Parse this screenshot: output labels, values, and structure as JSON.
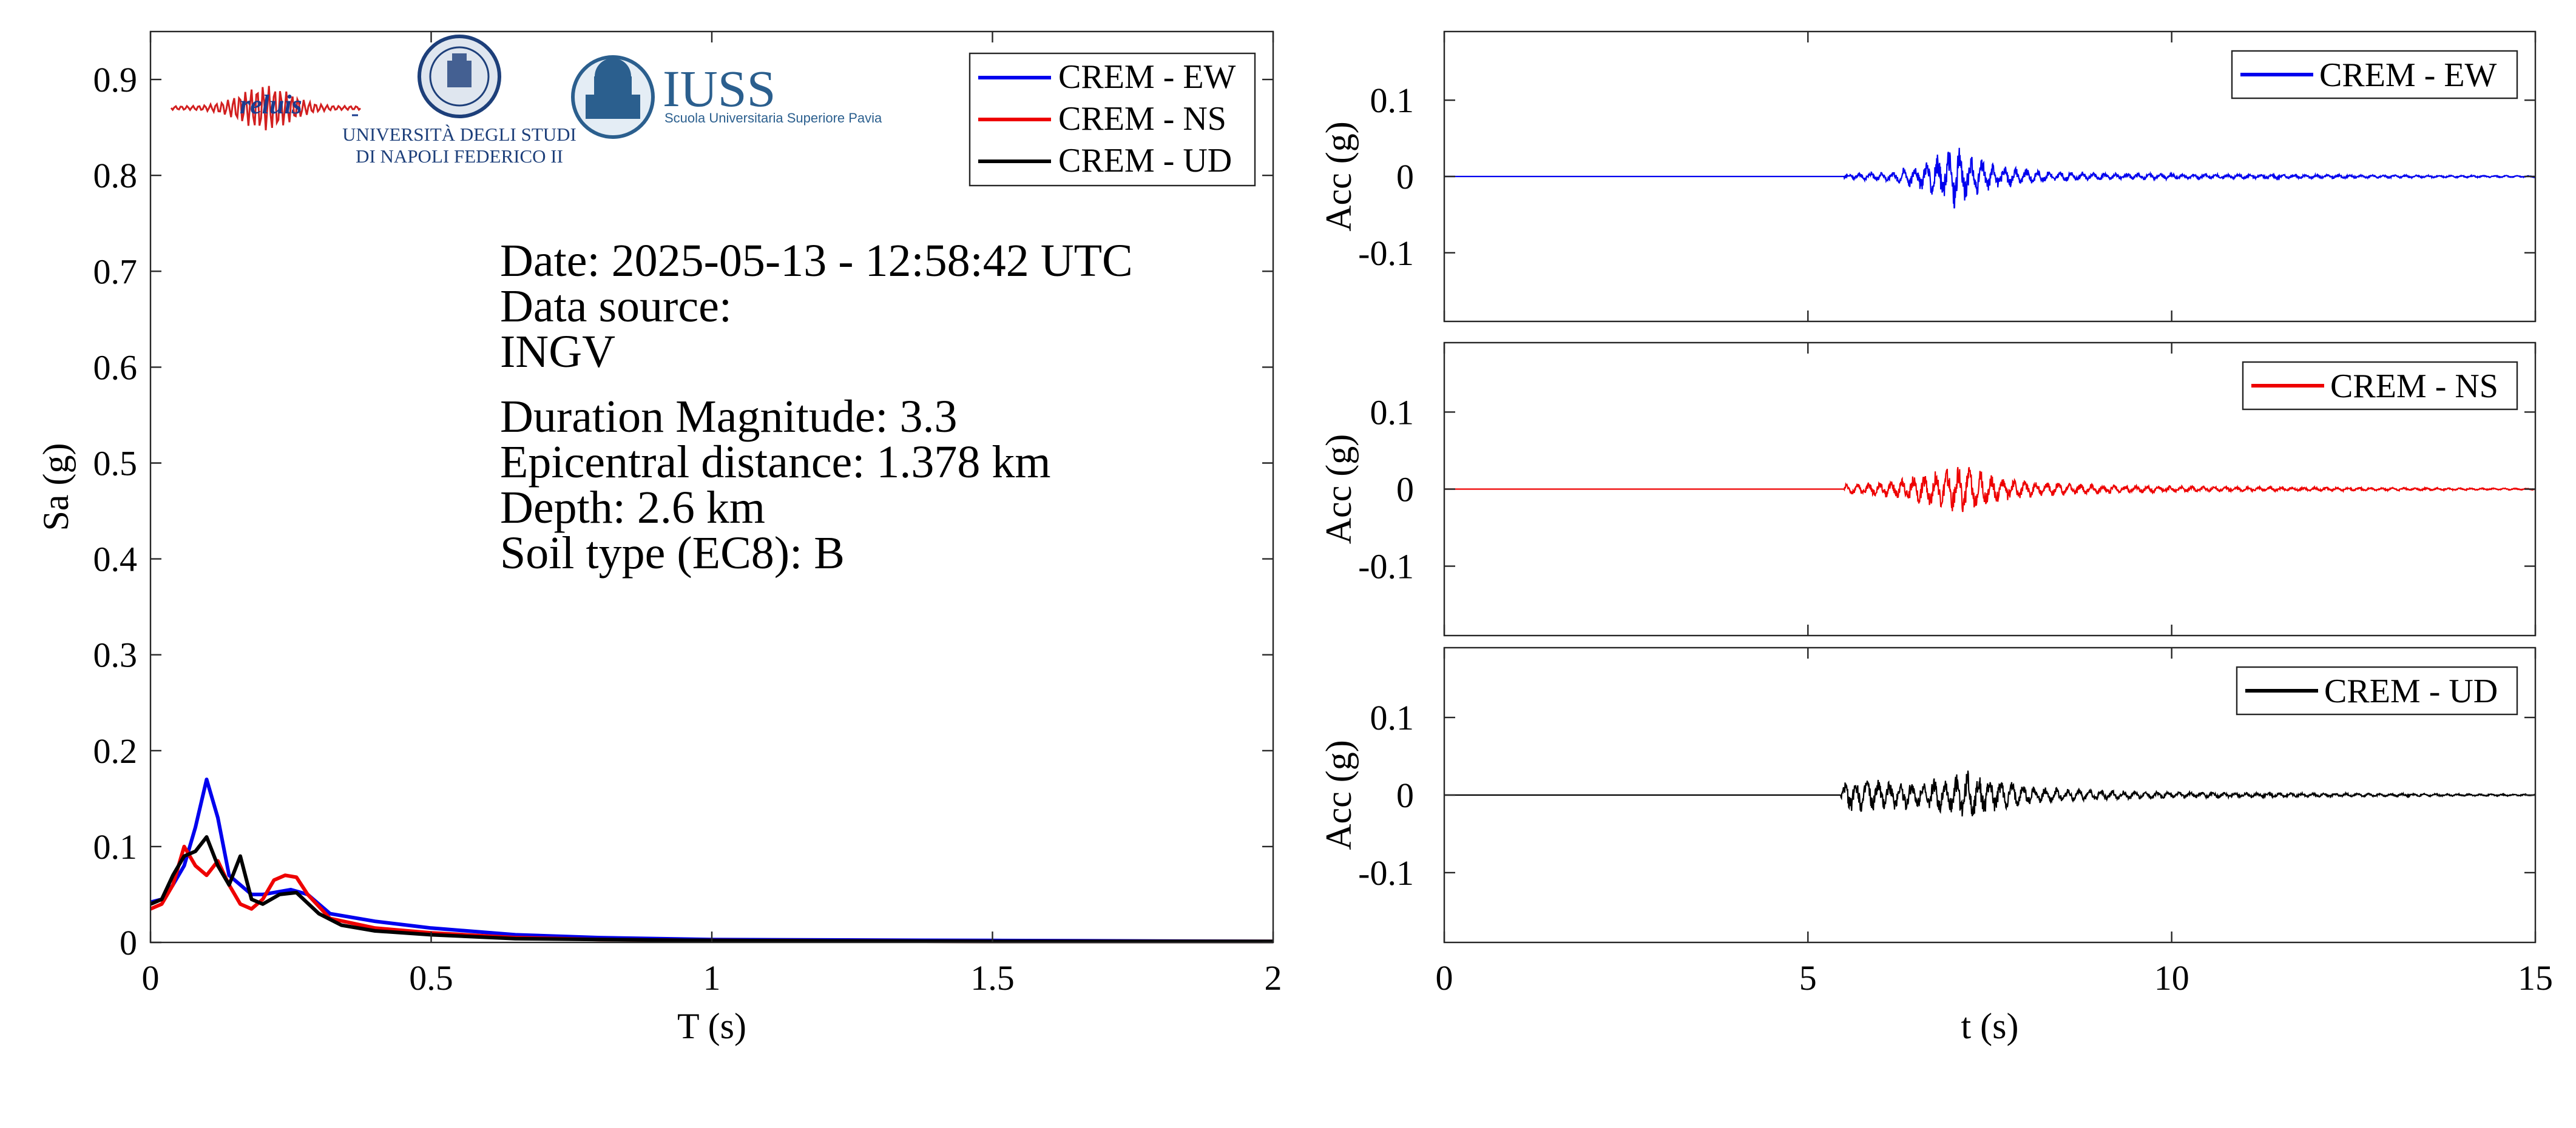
{
  "colors": {
    "ew": "#0000ee",
    "ns": "#ee0000",
    "ud": "#000000"
  },
  "logos": {
    "reluis": "reluis",
    "unina_line1": "UNIVERSITÀ DEGLI STUDI",
    "unina_line2": "DI NAPOLI FEDERICO II",
    "iuss_title": "IUSS",
    "iuss_subtitle": "Scuola Universitaria Superiore Pavia"
  },
  "info": {
    "date": "Date: 2025-05-13 - 12:58:42 UTC",
    "source_label": "Data source:",
    "source_value": "INGV",
    "magnitude": "Duration Magnitude: 3.3",
    "distance": "Epicentral distance: 1.378 km",
    "depth": "Depth: 2.6 km",
    "soil": "Soil type (EC8): B"
  },
  "chart_data": [
    {
      "type": "line",
      "xlabel": "T (s)",
      "ylabel": "Sa (g)",
      "xlim": [
        0,
        2
      ],
      "ylim": [
        0,
        0.95
      ],
      "xticks": [
        0,
        0.5,
        1,
        1.5,
        2
      ],
      "xticklabels": [
        "0",
        "0.5",
        "1",
        "1.5",
        "2"
      ],
      "yticks": [
        0,
        0.1,
        0.2,
        0.3,
        0.4,
        0.5,
        0.6,
        0.7,
        0.8,
        0.9
      ],
      "yticklabels": [
        "0",
        "0.1",
        "0.2",
        "0.3",
        "0.4",
        "0.5",
        "0.6",
        "0.7",
        "0.8",
        "0.9"
      ],
      "legend": "top-right",
      "series": [
        {
          "name": "CREM - EW",
          "color": "#0000ee",
          "x": [
            0,
            0.02,
            0.04,
            0.06,
            0.08,
            0.1,
            0.12,
            0.14,
            0.16,
            0.18,
            0.2,
            0.22,
            0.25,
            0.28,
            0.32,
            0.4,
            0.5,
            0.65,
            0.8,
            1.0,
            1.5,
            2.0
          ],
          "y": [
            0.042,
            0.045,
            0.06,
            0.08,
            0.12,
            0.17,
            0.13,
            0.07,
            0.06,
            0.05,
            0.05,
            0.052,
            0.055,
            0.05,
            0.03,
            0.022,
            0.015,
            0.008,
            0.005,
            0.003,
            0.002,
            0.001
          ]
        },
        {
          "name": "CREM - NS",
          "color": "#ee0000",
          "x": [
            0,
            0.02,
            0.04,
            0.06,
            0.08,
            0.1,
            0.12,
            0.14,
            0.16,
            0.18,
            0.2,
            0.22,
            0.24,
            0.26,
            0.28,
            0.32,
            0.4,
            0.5,
            0.65,
            0.8,
            1.0,
            1.5,
            2.0
          ],
          "y": [
            0.035,
            0.04,
            0.06,
            0.1,
            0.08,
            0.07,
            0.085,
            0.06,
            0.04,
            0.035,
            0.045,
            0.065,
            0.07,
            0.068,
            0.05,
            0.025,
            0.015,
            0.01,
            0.005,
            0.003,
            0.002,
            0.001,
            0.001
          ]
        },
        {
          "name": "CREM - UD",
          "color": "#000000",
          "x": [
            0,
            0.02,
            0.04,
            0.06,
            0.08,
            0.1,
            0.12,
            0.14,
            0.16,
            0.18,
            0.2,
            0.23,
            0.26,
            0.3,
            0.34,
            0.4,
            0.5,
            0.65,
            0.8,
            1.0,
            1.5,
            2.0
          ],
          "y": [
            0.04,
            0.045,
            0.07,
            0.09,
            0.095,
            0.11,
            0.08,
            0.06,
            0.09,
            0.045,
            0.04,
            0.05,
            0.052,
            0.03,
            0.018,
            0.012,
            0.008,
            0.004,
            0.003,
            0.002,
            0.001,
            0.001
          ]
        }
      ]
    },
    {
      "type": "line",
      "xlabel": "",
      "ylabel": "Acc (g)",
      "xlim": [
        0,
        15
      ],
      "ylim": [
        -0.19,
        0.19
      ],
      "yticks": [
        -0.1,
        0,
        0.1
      ],
      "yticklabels": [
        "-0.1",
        "0",
        "0.1"
      ],
      "legend": "top-right",
      "series": [
        {
          "name": "CREM - EW",
          "color": "#0000ee",
          "onset": 5.5,
          "t": [
            5.5,
            6.2,
            6.6,
            6.9,
            7.0,
            7.1,
            7.3,
            7.6,
            8.0,
            8.5,
            9.5,
            11,
            13,
            15
          ],
          "env": [
            0.003,
            0.008,
            0.02,
            0.033,
            0.045,
            0.035,
            0.025,
            0.016,
            0.01,
            0.006,
            0.004,
            0.003,
            0.002,
            0.001
          ]
        }
      ]
    },
    {
      "type": "line",
      "xlabel": "",
      "ylabel": "Acc (g)",
      "xlim": [
        0,
        15
      ],
      "ylim": [
        -0.19,
        0.19
      ],
      "yticks": [
        -0.1,
        0,
        0.1
      ],
      "yticklabels": [
        "-0.1",
        "0",
        "0.1"
      ],
      "legend": "top-right",
      "series": [
        {
          "name": "CREM - NS",
          "color": "#ee0000",
          "onset": 5.5,
          "t": [
            5.5,
            6.2,
            6.6,
            6.9,
            7.1,
            7.3,
            7.6,
            8.0,
            8.5,
            9.5,
            11,
            13,
            15
          ],
          "env": [
            0.006,
            0.012,
            0.02,
            0.026,
            0.032,
            0.027,
            0.018,
            0.011,
            0.008,
            0.005,
            0.003,
            0.002,
            0.001
          ]
        }
      ]
    },
    {
      "type": "line",
      "xlabel": "t (s)",
      "ylabel": "Acc (g)",
      "xlim": [
        0,
        15
      ],
      "ylim": [
        -0.19,
        0.19
      ],
      "xticks": [
        0,
        5,
        10,
        15
      ],
      "xticklabels": [
        "0",
        "5",
        "10",
        "15"
      ],
      "yticks": [
        -0.1,
        0,
        0.1
      ],
      "yticklabels": [
        "-0.1",
        "0",
        "0.1"
      ],
      "legend": "top-right",
      "series": [
        {
          "name": "CREM - UD",
          "color": "#000000",
          "onset": 5.45,
          "t": [
            5.45,
            5.6,
            6.0,
            6.5,
            7.0,
            7.2,
            7.5,
            7.9,
            8.5,
            9.5,
            11,
            13,
            15
          ],
          "env": [
            0.01,
            0.024,
            0.02,
            0.018,
            0.025,
            0.032,
            0.024,
            0.014,
            0.008,
            0.005,
            0.003,
            0.002,
            0.001
          ]
        }
      ]
    }
  ]
}
